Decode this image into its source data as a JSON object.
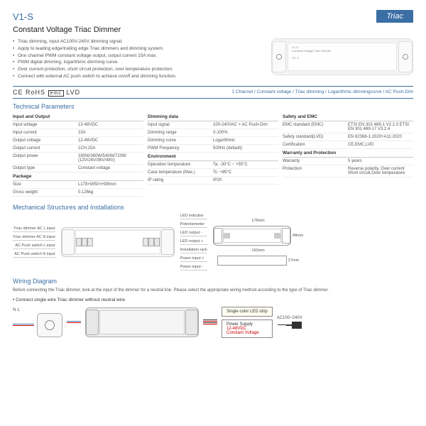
{
  "model": "V1-S",
  "badge": "Triac",
  "title": "Constant Voltage Triac Dimmer",
  "features": [
    "Triac dimming, input AC100V-240V dimming signal.",
    "Apply to leading edge/trailing edge Triac dimmers and dimming system.",
    "One channel PWM constant voltage output, output current 15A max.",
    "PWM digital dimming, logarithmic dimming curve.",
    "Over current protection, short circuit protection, over temperature protection.",
    "Connect with external AC push switch to achieve on/off and dimming function."
  ],
  "certs": "CE RoHS",
  "cert_box": "emc",
  "cert_lvd": "LVD",
  "channel_info": "1 Channel / Constant voltage / Triac dimming / Logarithmic dimmingcurve / AC Push-Dim",
  "tech_title": "Technical Parameters",
  "params_cols": [
    {
      "groups": [
        {
          "head": "Input and Output",
          "rows": [
            {
              "k": "Input voltage",
              "v": "12-48VDC"
            },
            {
              "k": "Input current",
              "v": "15A"
            },
            {
              "k": "Output voltage",
              "v": "12-48VDC"
            },
            {
              "k": "Output current",
              "v": "1CH,15A"
            },
            {
              "k": "Output power",
              "v": "180W/360W/540W/720W (12V/24V/36V/48V)"
            },
            {
              "k": "Output type",
              "v": "Constant voltage"
            }
          ]
        },
        {
          "head": "Package",
          "rows": [
            {
              "k": "Size",
              "v": "L178×W50×H38mm"
            },
            {
              "k": "Gross weight",
              "v": "0.126kg"
            }
          ]
        }
      ]
    },
    {
      "groups": [
        {
          "head": "Dimming data",
          "rows": [
            {
              "k": "Input signal",
              "v": "100-240VAC + AC Push-Dim"
            },
            {
              "k": "Dimming range",
              "v": "0-100%"
            },
            {
              "k": "Dimming curve",
              "v": "Logarithmic"
            },
            {
              "k": "PWM Frequency",
              "v": "500Hz (default)"
            }
          ]
        },
        {
          "head": "Environment",
          "rows": [
            {
              "k": "Operation temperature",
              "v": "Ta: -30°C ~ +55°C"
            },
            {
              "k": "Case temperature (Max.)",
              "v": "Tc: +85°C"
            },
            {
              "k": "IP rating",
              "v": "IP20"
            }
          ]
        }
      ]
    },
    {
      "groups": [
        {
          "head": "Safety and EMC",
          "rows": [
            {
              "k": "EMC standard (EMC)",
              "v": "ETSI EN 301 489-1 V2.2.3 ETSI EN 301 489-17 V3.2.4"
            },
            {
              "k": "Safety standard(LVD)",
              "v": "EN 62368-1:2020+A11:2020"
            },
            {
              "k": "Certification",
              "v": "CE,EMC,LVD"
            }
          ]
        },
        {
          "head": "Warranty and Protection",
          "rows": [
            {
              "k": "Warranty",
              "v": "5 years"
            },
            {
              "k": "Protection",
              "v": "Reverse polarity, Over current Short circuit,Over temperature"
            }
          ]
        }
      ]
    }
  ],
  "mech_title": "Mechanical Structures and Installations",
  "mech_labels_left": [
    "Triac dimmer AC L input",
    "Triac dimmer AC N input",
    "AC Push switch L input",
    "AC Push switch N input"
  ],
  "mech_labels_right": [
    "LED indicator",
    "Potentiometer",
    "LED output -",
    "LED output +",
    "Installation rack",
    "Power input +",
    "Power input -"
  ],
  "dim_w": "178mm",
  "dim_h": "48mm",
  "dim_w2": "160mm",
  "dim_d": "27mm",
  "wiring_title": "Wiring Diagram",
  "wiring_text": "Before connecting the Triac dimmer, look at the input of the dimmer for a neutral line. Please select the appropriate wiring method according to the type of Triac dimmer.",
  "wiring_bullet": "• Connect single wire Triac dimmer without neutral wire",
  "nl": "N  L",
  "led_strip": "Single color LED strip",
  "psu1": "Power Supply",
  "psu2": "12-48VDC",
  "psu3": "Constant Voltage",
  "ac": "AC100~240V",
  "colors": {
    "blue": "#3a6ea5",
    "red": "#c00",
    "black": "#333",
    "gray": "#888"
  }
}
